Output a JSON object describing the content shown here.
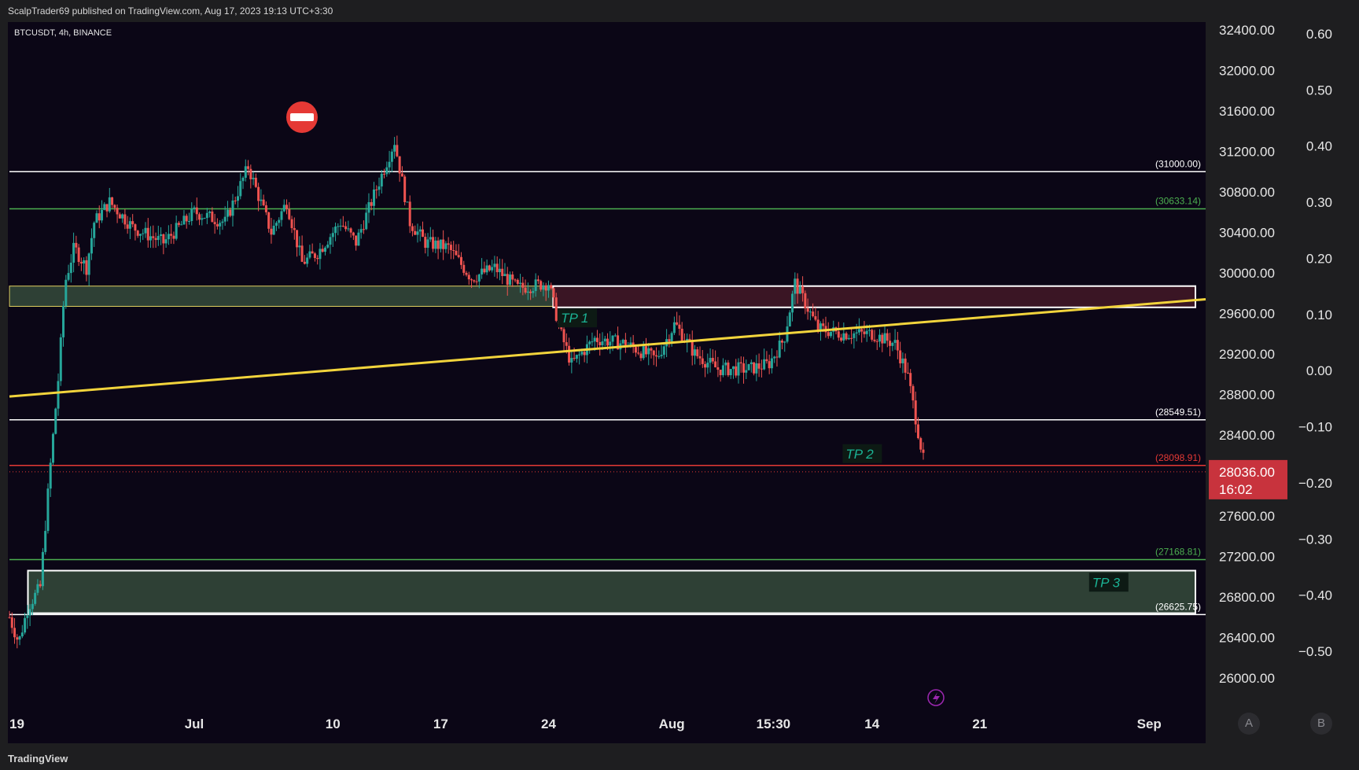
{
  "header": {
    "publish_line": "ScalpTrader69 published on TradingView.com, Aug 17, 2023 19:13 UTC+3:30"
  },
  "footer": {
    "brand": "TradingView"
  },
  "axis_buttons": {
    "a": "A",
    "b": "B"
  },
  "colors": {
    "background": "#0b0616",
    "up_candle": "#26a69a",
    "down_candle": "#ef5350",
    "trendline": "#f2d43c",
    "support_zone": "#2e4035",
    "resistance_zone": "#3a1524",
    "price_label": "#c8333d"
  },
  "chart_data": {
    "type": "candlestick",
    "symbol_label": "BTCUSDT, 4h, BINANCE",
    "price_axis": {
      "ticks": [
        "32400.00",
        "32000.00",
        "31600.00",
        "31200.00",
        "30800.00",
        "30400.00",
        "30000.00",
        "29600.00",
        "29200.00",
        "28800.00",
        "28400.00",
        "28000.00",
        "27600.00",
        "27200.00",
        "26800.00",
        "26400.00",
        "26000.00"
      ],
      "tick_values": [
        32400,
        32000,
        31600,
        31200,
        30800,
        30400,
        30000,
        29600,
        29200,
        28800,
        28400,
        28000,
        27600,
        27200,
        26800,
        26400,
        26000
      ],
      "range": [
        25900,
        32500
      ]
    },
    "oscillator_axis": {
      "ticks": [
        "0.60",
        "0.50",
        "0.40",
        "0.30",
        "0.20",
        "0.10",
        "0.00",
        "−0.10",
        "−0.20",
        "−0.30",
        "−0.40",
        "−0.50"
      ],
      "tick_values": [
        0.6,
        0.5,
        0.4,
        0.3,
        0.2,
        0.1,
        0.0,
        -0.1,
        -0.2,
        -0.3,
        -0.4,
        -0.5
      ]
    },
    "time_axis": {
      "labels": [
        "19",
        "Jul",
        "10",
        "17",
        "24",
        "Aug",
        "15:30",
        "14",
        "21",
        "Sep"
      ],
      "label_days": [
        0,
        12,
        21,
        28,
        35,
        43,
        49.6,
        56,
        63,
        74
      ],
      "range_days": [
        0,
        77
      ]
    },
    "current_price": {
      "value": 28036,
      "label": "28036.00",
      "countdown": "16:02"
    },
    "horizontal_levels": [
      {
        "value": 31000,
        "label": "(31000.00)",
        "color": "#ffffff"
      },
      {
        "value": 30633.14,
        "label": "(30633.14)",
        "color": "#4caf50"
      },
      {
        "value": 28549.51,
        "label": "(28549.51)",
        "color": "#ffffff"
      },
      {
        "value": 28098.91,
        "label": "(28098.91)",
        "color": "#e53935"
      },
      {
        "value": 27168.81,
        "label": "(27168.81)",
        "color": "#4caf50"
      },
      {
        "value": 26625.75,
        "label": "(26625.75)",
        "color": "#ffffff"
      }
    ],
    "zones": [
      {
        "name": "support-zone-upper",
        "from_day": 0,
        "to_day": 35.3,
        "low": 29670,
        "high": 29870
      },
      {
        "name": "resistance-zone",
        "from_day": 35.3,
        "to_day": 77,
        "low": 29660,
        "high": 29870
      },
      {
        "name": "support-zone-lower",
        "from_day": 1.2,
        "to_day": 77,
        "low": 26640,
        "high": 27060
      }
    ],
    "trendline": {
      "start": {
        "day": 0,
        "price": 28780
      },
      "end": {
        "day": 77,
        "price": 29740
      }
    },
    "annotations": [
      {
        "text": "TP 1",
        "day": 35.8,
        "price": 29540
      },
      {
        "text": "TP 2",
        "day": 54.3,
        "price": 28200
      },
      {
        "text": "TP 3",
        "day": 70.3,
        "price": 26930
      }
    ],
    "series_path": [
      {
        "day": 0,
        "price": 26600
      },
      {
        "day": 0.6,
        "price": 26350
      },
      {
        "day": 1.2,
        "price": 26700
      },
      {
        "day": 2,
        "price": 26900
      },
      {
        "day": 2.6,
        "price": 28000
      },
      {
        "day": 3.2,
        "price": 29000
      },
      {
        "day": 3.6,
        "price": 29900
      },
      {
        "day": 4.2,
        "price": 30250
      },
      {
        "day": 5,
        "price": 30050
      },
      {
        "day": 5.5,
        "price": 30500
      },
      {
        "day": 6.5,
        "price": 30700
      },
      {
        "day": 8,
        "price": 30450
      },
      {
        "day": 10,
        "price": 30300
      },
      {
        "day": 12,
        "price": 30600
      },
      {
        "day": 14,
        "price": 30500
      },
      {
        "day": 15.5,
        "price": 31050
      },
      {
        "day": 17,
        "price": 30400
      },
      {
        "day": 18,
        "price": 30700
      },
      {
        "day": 19,
        "price": 30100
      },
      {
        "day": 20,
        "price": 30200
      },
      {
        "day": 21.5,
        "price": 30500
      },
      {
        "day": 22.5,
        "price": 30300
      },
      {
        "day": 23.5,
        "price": 30700
      },
      {
        "day": 25,
        "price": 31300
      },
      {
        "day": 26,
        "price": 30500
      },
      {
        "day": 27,
        "price": 30300
      },
      {
        "day": 28.5,
        "price": 30250
      },
      {
        "day": 30,
        "price": 29950
      },
      {
        "day": 31.5,
        "price": 30050
      },
      {
        "day": 33,
        "price": 29850
      },
      {
        "day": 35,
        "price": 29900
      },
      {
        "day": 35.8,
        "price": 29400
      },
      {
        "day": 36.5,
        "price": 29100
      },
      {
        "day": 38,
        "price": 29350
      },
      {
        "day": 40,
        "price": 29300
      },
      {
        "day": 42,
        "price": 29150
      },
      {
        "day": 43.2,
        "price": 29500
      },
      {
        "day": 44.5,
        "price": 29200
      },
      {
        "day": 46,
        "price": 29050
      },
      {
        "day": 48,
        "price": 29050
      },
      {
        "day": 49.3,
        "price": 29100
      },
      {
        "day": 50.3,
        "price": 29350
      },
      {
        "day": 51,
        "price": 29900
      },
      {
        "day": 52.5,
        "price": 29450
      },
      {
        "day": 54,
        "price": 29400
      },
      {
        "day": 56,
        "price": 29400
      },
      {
        "day": 57.5,
        "price": 29300
      },
      {
        "day": 58.3,
        "price": 29000
      },
      {
        "day": 58.8,
        "price": 28600
      },
      {
        "day": 59.4,
        "price": 28100
      }
    ]
  }
}
